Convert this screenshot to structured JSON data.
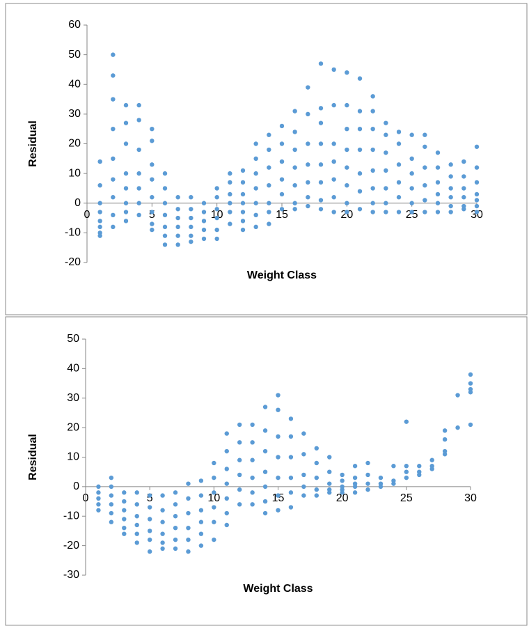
{
  "chart_data": [
    {
      "type": "scatter",
      "y_label": "Residual",
      "x_label": "Weight Class",
      "xlim": [
        0,
        30
      ],
      "xticks": [
        0,
        5,
        10,
        15,
        20,
        25,
        30
      ],
      "ylim": [
        -20,
        60
      ],
      "yticks": [
        -20,
        -10,
        0,
        10,
        20,
        30,
        40,
        50,
        60
      ],
      "series": [
        {
          "color": "#5b9bd5",
          "x": [
            1,
            1,
            1,
            1,
            1,
            1,
            1,
            1,
            2,
            2,
            2,
            2,
            2,
            2,
            2,
            2,
            2,
            3,
            3,
            3,
            3,
            3,
            3,
            3,
            3,
            4,
            4,
            4,
            4,
            4,
            4,
            4,
            5,
            5,
            5,
            5,
            5,
            5,
            5,
            5,
            6,
            6,
            6,
            6,
            6,
            6,
            6,
            7,
            7,
            7,
            7,
            7,
            7,
            8,
            8,
            8,
            8,
            8,
            8,
            9,
            9,
            9,
            9,
            9,
            10,
            10,
            10,
            10,
            10,
            10,
            11,
            11,
            11,
            11,
            11,
            11,
            12,
            12,
            12,
            12,
            12,
            12,
            12,
            13,
            13,
            13,
            13,
            13,
            13,
            13,
            14,
            14,
            14,
            14,
            14,
            14,
            14,
            15,
            15,
            15,
            15,
            15,
            15,
            16,
            16,
            16,
            16,
            16,
            16,
            16,
            17,
            17,
            17,
            17,
            17,
            17,
            17,
            18,
            18,
            18,
            18,
            18,
            18,
            18,
            18,
            19,
            19,
            19,
            19,
            19,
            19,
            19,
            20,
            20,
            20,
            20,
            20,
            20,
            20,
            20,
            21,
            21,
            21,
            21,
            21,
            21,
            21,
            22,
            22,
            22,
            22,
            22,
            22,
            22,
            22,
            23,
            23,
            23,
            23,
            23,
            23,
            23,
            24,
            24,
            24,
            24,
            24,
            24,
            25,
            25,
            25,
            25,
            25,
            25,
            26,
            26,
            26,
            26,
            26,
            26,
            27,
            27,
            27,
            27,
            27,
            27,
            28,
            28,
            28,
            28,
            28,
            28,
            29,
            29,
            29,
            29,
            29,
            29,
            30,
            30,
            30,
            30,
            30,
            30,
            30
          ],
          "values": [
            14,
            6,
            0,
            -3,
            -6,
            -8,
            -10,
            -11,
            50,
            43,
            35,
            25,
            15,
            8,
            2,
            -4,
            -8,
            33,
            27,
            20,
            10,
            5,
            0,
            -3,
            -6,
            33,
            28,
            18,
            10,
            5,
            0,
            -4,
            25,
            21,
            13,
            8,
            2,
            -3,
            -7,
            -9,
            10,
            5,
            0,
            -4,
            -8,
            -11,
            -14,
            2,
            -2,
            -5,
            -8,
            -11,
            -14,
            2,
            -2,
            -5,
            -8,
            -11,
            -13,
            0,
            -3,
            -6,
            -9,
            -12,
            5,
            2,
            -2,
            -5,
            -9,
            -12,
            10,
            7,
            3,
            0,
            -3,
            -7,
            11,
            7,
            3,
            0,
            -3,
            -6,
            -9,
            20,
            15,
            10,
            5,
            0,
            -4,
            -8,
            23,
            18,
            12,
            6,
            0,
            -3,
            -7,
            26,
            20,
            14,
            8,
            3,
            -2,
            31,
            24,
            18,
            12,
            6,
            0,
            -2,
            39,
            30,
            20,
            13,
            7,
            2,
            -1,
            47,
            32,
            27,
            20,
            13,
            7,
            1,
            -2,
            45,
            33,
            20,
            14,
            8,
            2,
            -3,
            44,
            33,
            25,
            18,
            12,
            6,
            0,
            -3,
            42,
            31,
            25,
            18,
            10,
            4,
            -2,
            36,
            31,
            25,
            18,
            11,
            5,
            0,
            -3,
            27,
            23,
            17,
            11,
            5,
            0,
            -3,
            24,
            20,
            13,
            7,
            2,
            -3,
            23,
            15,
            10,
            5,
            0,
            -3,
            23,
            19,
            12,
            6,
            1,
            -3,
            17,
            12,
            7,
            3,
            0,
            -3,
            13,
            9,
            5,
            2,
            -1,
            -3,
            14,
            9,
            5,
            2,
            -1,
            -2,
            19,
            12,
            7,
            3,
            1,
            -1,
            -3
          ]
        }
      ]
    },
    {
      "type": "scatter",
      "y_label": "Residual",
      "x_label": "Weight Class",
      "xlim": [
        0,
        30
      ],
      "xticks": [
        0,
        5,
        10,
        15,
        20,
        25,
        30
      ],
      "ylim": [
        -30,
        50
      ],
      "yticks": [
        -30,
        -20,
        -10,
        0,
        10,
        20,
        30,
        40,
        50
      ],
      "series": [
        {
          "color": "#5b9bd5",
          "x": [
            1,
            1,
            1,
            1,
            1,
            2,
            2,
            2,
            2,
            2,
            2,
            3,
            3,
            3,
            3,
            3,
            3,
            4,
            4,
            4,
            4,
            4,
            4,
            5,
            5,
            5,
            5,
            5,
            5,
            6,
            6,
            6,
            6,
            6,
            6,
            7,
            7,
            7,
            7,
            7,
            7,
            8,
            8,
            8,
            8,
            8,
            8,
            9,
            9,
            9,
            9,
            9,
            9,
            10,
            10,
            10,
            10,
            10,
            10,
            11,
            11,
            11,
            11,
            11,
            11,
            11,
            12,
            12,
            12,
            12,
            12,
            12,
            13,
            13,
            13,
            13,
            13,
            13,
            14,
            14,
            14,
            14,
            14,
            14,
            14,
            15,
            15,
            15,
            15,
            15,
            15,
            15,
            16,
            16,
            16,
            16,
            16,
            16,
            17,
            17,
            17,
            17,
            17,
            18,
            18,
            18,
            18,
            18,
            19,
            19,
            19,
            19,
            19,
            20,
            20,
            20,
            20,
            20,
            21,
            21,
            21,
            21,
            21,
            22,
            22,
            22,
            22,
            23,
            23,
            23,
            24,
            24,
            24,
            25,
            25,
            25,
            25,
            26,
            26,
            26,
            27,
            27,
            27,
            28,
            28,
            28,
            28,
            29,
            29,
            30,
            30,
            30,
            30,
            30
          ],
          "values": [
            0,
            -2,
            -4,
            -6,
            -8,
            3,
            0,
            -3,
            -6,
            -9,
            -12,
            -2,
            -5,
            -8,
            -11,
            -14,
            -16,
            -2,
            -6,
            -10,
            -13,
            -16,
            -19,
            -3,
            -7,
            -11,
            -15,
            -18,
            -22,
            -3,
            -8,
            -12,
            -16,
            -19,
            -21,
            -2,
            -6,
            -10,
            -14,
            -18,
            -21,
            1,
            -4,
            -9,
            -14,
            -18,
            -22,
            2,
            -3,
            -8,
            -12,
            -16,
            -20,
            8,
            3,
            -2,
            -7,
            -12,
            -18,
            18,
            12,
            6,
            1,
            -4,
            -9,
            -13,
            21,
            15,
            9,
            4,
            -1,
            -6,
            21,
            15,
            9,
            3,
            -2,
            -6,
            27,
            19,
            12,
            5,
            0,
            -5,
            -9,
            31,
            26,
            17,
            10,
            3,
            -3,
            -8,
            23,
            17,
            10,
            3,
            -2,
            -7,
            18,
            11,
            4,
            0,
            -3,
            13,
            8,
            3,
            -1,
            -3,
            10,
            5,
            1,
            -1,
            -2,
            4,
            2,
            0,
            -1,
            -2,
            7,
            3,
            1,
            0,
            -2,
            8,
            4,
            1,
            -1,
            3,
            1,
            0,
            7,
            2,
            1,
            22,
            7,
            5,
            3,
            7,
            5,
            4,
            9,
            7,
            6,
            19,
            16,
            12,
            11,
            31,
            20,
            38,
            35,
            33,
            32,
            21
          ]
        }
      ]
    }
  ]
}
